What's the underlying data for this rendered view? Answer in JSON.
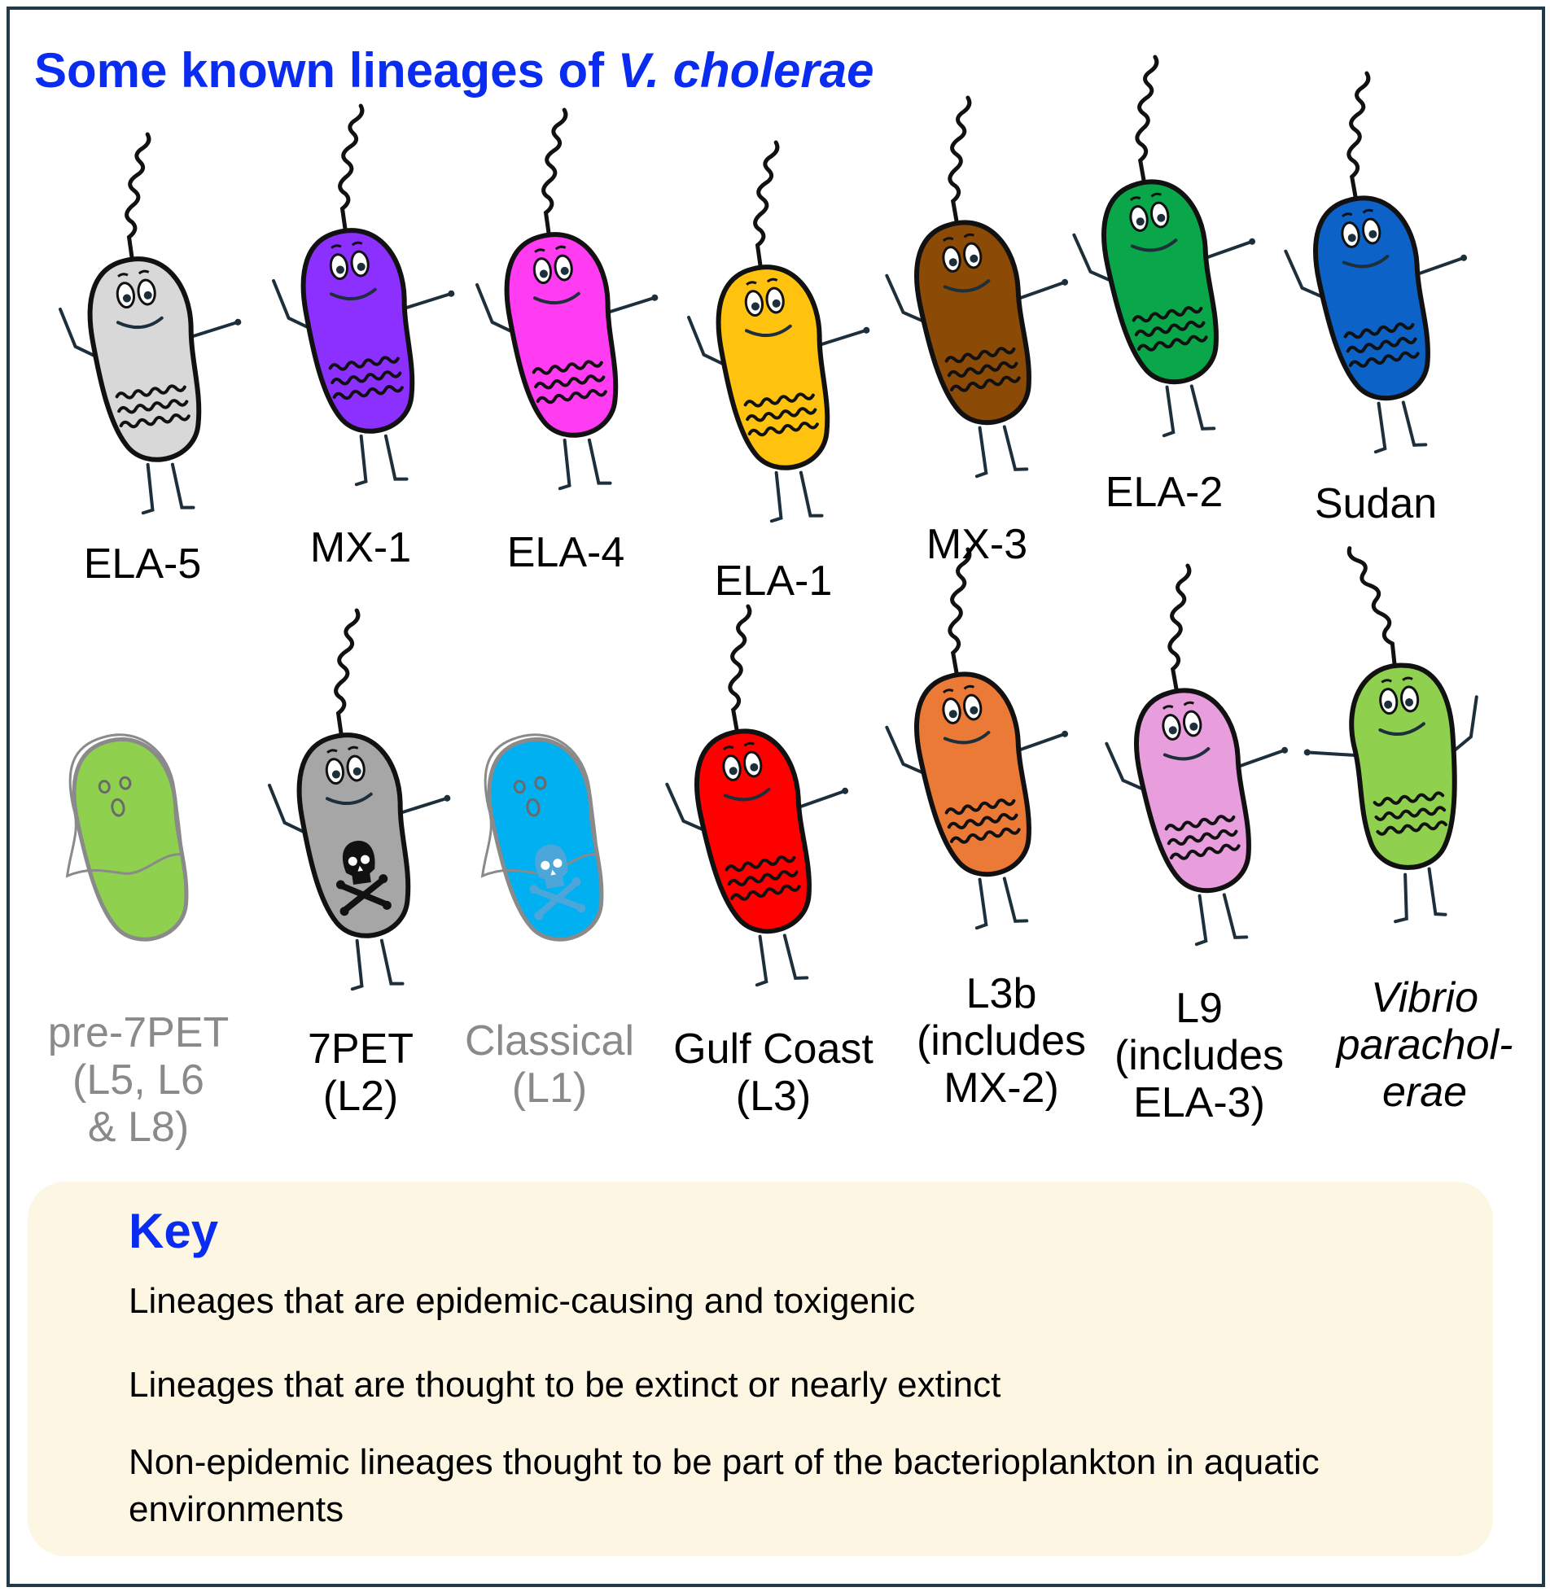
{
  "title": {
    "plain": "Some known lineages of ",
    "italic": "V. cholerae"
  },
  "colors": {
    "accent_blue": "#0a2cf0",
    "frame": "#213a4a",
    "key_background": "#fdf6e3",
    "ghost_text": "#8a8a8a"
  },
  "lineages_row1": [
    {
      "lines": [
        "ELA-5"
      ],
      "color": "#d8d8d8",
      "markers": [
        "waves-icon"
      ]
    },
    {
      "lines": [
        "MX-1"
      ],
      "color": "#8c30ff",
      "markers": [
        "waves-icon"
      ]
    },
    {
      "lines": [
        "ELA-4"
      ],
      "color": "#ff3cf2",
      "markers": [
        "waves-icon"
      ]
    },
    {
      "lines": [
        "ELA-1"
      ],
      "color": "#ffc20e",
      "markers": [
        "waves-icon"
      ]
    },
    {
      "lines": [
        "MX-3"
      ],
      "color": "#8b4a06",
      "markers": [
        "waves-icon"
      ]
    },
    {
      "lines": [
        "ELA-2"
      ],
      "color": "#0aa64a",
      "markers": [
        "waves-icon"
      ]
    },
    {
      "lines": [
        "Sudan"
      ],
      "color": "#0c62c6",
      "markers": [
        "waves-icon"
      ]
    }
  ],
  "lineages_row2": [
    {
      "lines": [
        "pre-7PET",
        "(L5, L6",
        "& L8)"
      ],
      "color": "#8fd14f",
      "markers": [
        "ghost-icon"
      ]
    },
    {
      "lines": [
        "7PET",
        "(L2)"
      ],
      "color": "#a6a6a6",
      "markers": [
        "skull-crossbones-icon"
      ]
    },
    {
      "lines": [
        "Classical",
        "(L1)"
      ],
      "color": "#00b0f0",
      "markers": [
        "ghost-icon",
        "skull-crossbones-icon"
      ]
    },
    {
      "lines": [
        "Gulf Coast",
        "(L3)"
      ],
      "color": "#ff0000",
      "markers": [
        "waves-icon"
      ]
    },
    {
      "lines": [
        "L3b",
        "(includes",
        "MX-2)"
      ],
      "color": "#eb7a36",
      "markers": [
        "waves-icon"
      ]
    },
    {
      "lines": [
        "L9",
        "(includes",
        "ELA-3)"
      ],
      "color": "#e89edc",
      "markers": [
        "waves-icon"
      ]
    },
    {
      "lines": [
        "Vibrio",
        "parachol-",
        "erae"
      ],
      "color": "#8fd14f",
      "markers": [
        "waves-icon"
      ]
    }
  ],
  "key": {
    "title": "Key",
    "items": [
      {
        "icon": "skull-crossbones-icon",
        "text": "Lineages that are epidemic-causing and toxigenic"
      },
      {
        "icon": "ghost-icon",
        "text": "Lineages that are thought to be extinct or nearly extinct"
      },
      {
        "icon": "waves-icon",
        "text": "Non-epidemic lineages thought to be part of the bacterioplankton in aquatic environments"
      }
    ]
  }
}
